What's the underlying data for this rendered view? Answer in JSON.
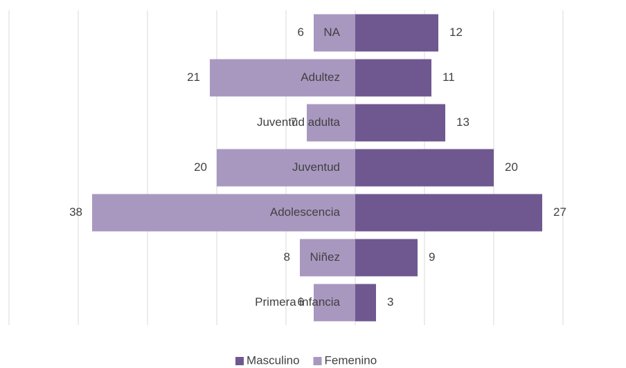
{
  "chart_data": {
    "type": "pyramid",
    "categories": [
      "NA",
      "Adultez",
      "Juventud adulta",
      "Juventud",
      "Adolescencia",
      "Niñez",
      "Primera infancia"
    ],
    "series": [
      {
        "name": "Masculino",
        "color": "#6f5890",
        "values": [
          12,
          11,
          13,
          20,
          27,
          9,
          3
        ]
      },
      {
        "name": "Femenino",
        "color": "#a898c0",
        "values": [
          6,
          21,
          7,
          20,
          38,
          8,
          6
        ]
      }
    ],
    "xlim": [
      -50,
      30
    ],
    "xticks": [
      -50,
      -40,
      -30,
      -20,
      -10,
      0,
      10,
      20,
      30
    ],
    "grid": true,
    "legend": "bottom"
  }
}
